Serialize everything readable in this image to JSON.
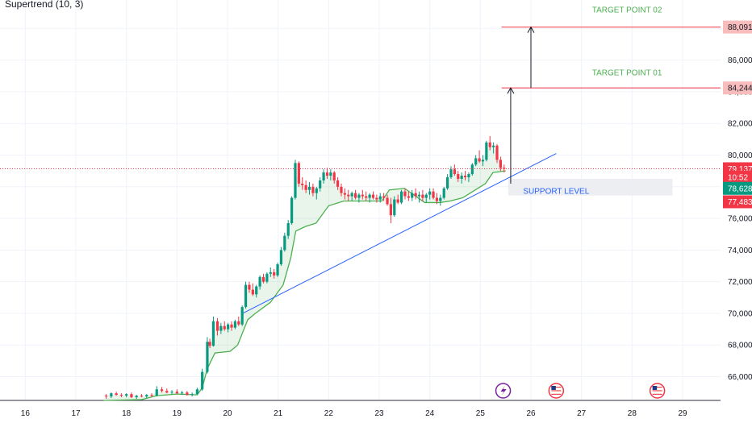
{
  "indicator": {
    "name": "Supertrend (10, 3)"
  },
  "chart_data": {
    "type": "candlestick",
    "x_axis": {
      "ticks": [
        "16",
        "17",
        "18",
        "19",
        "20",
        "21",
        "22",
        "23",
        "24",
        "25",
        "26",
        "27",
        "28",
        "29"
      ],
      "range_days": [
        15.5,
        29.75
      ]
    },
    "y_axis": {
      "ticks": [
        "66,000",
        "68,000",
        "70,000",
        "72,000",
        "74,000",
        "76,000",
        "78,000",
        "80,000",
        "82,000",
        "84,000",
        "86,000",
        "88,000"
      ],
      "range": [
        64500,
        89800
      ],
      "grid": true,
      "position": "right"
    },
    "price_tags": [
      {
        "label": "88,091",
        "value": 88091,
        "bg": "#f8bcbc",
        "fg": "#131722"
      },
      {
        "label": "84,244",
        "value": 84244,
        "bg": "#f8bcbc",
        "fg": "#131722"
      },
      {
        "label": "79,137",
        "value": 79137,
        "bg": "#f23645",
        "fg": "#ffffff"
      },
      {
        "label": "10:52",
        "value": 78600,
        "bg": "#f23645",
        "fg": "#ffffff"
      },
      {
        "label": "78,628",
        "value": 77900,
        "bg": "#089981",
        "fg": "#ffffff"
      },
      {
        "label": "77,483",
        "value": 77050,
        "bg": "#f23645",
        "fg": "#ffffff"
      }
    ],
    "current_price": 79137,
    "annotations": [
      {
        "text": "TARGET POINT 02",
        "day": 27.9,
        "value": 89000,
        "color": "#4caf50"
      },
      {
        "text": "TARGET POINT 01",
        "day": 27.9,
        "value": 85050,
        "color": "#4caf50"
      },
      {
        "text": "SUPPORT LEVEL",
        "day": 26.5,
        "value": 77550,
        "color": "#2962ff"
      }
    ],
    "target_lines": [
      {
        "value": 88091,
        "from_day": 25.42,
        "color": "#f23645"
      },
      {
        "value": 84244,
        "from_day": 25.42,
        "color": "#f23645"
      }
    ],
    "arrows": [
      {
        "day": 25.6,
        "from": 78200,
        "to": 84244
      },
      {
        "day": 26.0,
        "from": 84244,
        "to": 88091
      }
    ],
    "trendline": {
      "from": {
        "day": 20.3,
        "value": 70000
      },
      "to": {
        "day": 26.5,
        "value": 80100
      },
      "color": "#2962ff"
    },
    "support_zone": {
      "from_day": 25.55,
      "to_day": 28.8,
      "low": 77450,
      "high": 78500
    },
    "supertrend": [
      [
        17.55,
        64500
      ],
      [
        18.3,
        64550
      ],
      [
        18.6,
        64800
      ],
      [
        19.0,
        64900
      ],
      [
        19.4,
        64850
      ],
      [
        19.5,
        65300
      ],
      [
        19.6,
        66500
      ],
      [
        19.75,
        67500
      ],
      [
        20.05,
        67600
      ],
      [
        20.2,
        68000
      ],
      [
        20.4,
        69600
      ],
      [
        20.55,
        70000
      ],
      [
        20.85,
        70700
      ],
      [
        21.1,
        71800
      ],
      [
        21.25,
        73500
      ],
      [
        21.35,
        75200
      ],
      [
        21.55,
        75500
      ],
      [
        21.75,
        75700
      ],
      [
        22.0,
        76800
      ],
      [
        22.3,
        77100
      ],
      [
        22.75,
        77100
      ],
      [
        23.05,
        77100
      ],
      [
        23.2,
        77800
      ],
      [
        23.5,
        77900
      ],
      [
        23.9,
        77000
      ],
      [
        24.2,
        77000
      ],
      [
        24.4,
        77100
      ],
      [
        24.65,
        77300
      ],
      [
        24.85,
        77700
      ],
      [
        25.1,
        78200
      ],
      [
        25.25,
        78900
      ],
      [
        25.5,
        79000
      ]
    ],
    "candles": [
      [
        17.6,
        64800,
        64900,
        64600,
        64750
      ],
      [
        17.7,
        64750,
        65000,
        64650,
        64950
      ],
      [
        17.8,
        64950,
        65050,
        64800,
        64850
      ],
      [
        17.9,
        64850,
        64950,
        64700,
        64800
      ],
      [
        18.0,
        64800,
        64950,
        64700,
        64900
      ],
      [
        18.1,
        64900,
        65000,
        64650,
        64700
      ],
      [
        18.2,
        64700,
        64850,
        64600,
        64800
      ],
      [
        18.3,
        64800,
        64900,
        64700,
        64750
      ],
      [
        18.4,
        64750,
        64900,
        64650,
        64850
      ],
      [
        18.5,
        64850,
        64950,
        64700,
        64800
      ],
      [
        18.6,
        64800,
        65400,
        64750,
        65200
      ],
      [
        18.7,
        65200,
        65350,
        65000,
        65100
      ],
      [
        18.8,
        65100,
        65250,
        64950,
        65000
      ],
      [
        18.9,
        65000,
        65150,
        64900,
        65050
      ],
      [
        19.0,
        65050,
        65200,
        64900,
        64950
      ],
      [
        19.1,
        64950,
        65100,
        64850,
        65000
      ],
      [
        19.2,
        65000,
        65100,
        64800,
        64850
      ],
      [
        19.3,
        64850,
        65000,
        64750,
        64900
      ],
      [
        19.4,
        64900,
        65300,
        64850,
        65200
      ],
      [
        19.5,
        65200,
        66500,
        65100,
        66300
      ],
      [
        19.6,
        66300,
        68500,
        66200,
        68200
      ],
      [
        19.65,
        68200,
        68400,
        67800,
        67950
      ],
      [
        19.72,
        67950,
        69800,
        67900,
        69500
      ],
      [
        19.8,
        69500,
        69700,
        68600,
        68900
      ],
      [
        19.87,
        68900,
        69400,
        68700,
        69200
      ],
      [
        19.94,
        69200,
        69500,
        68900,
        69000
      ],
      [
        20.01,
        69000,
        69400,
        68800,
        69300
      ],
      [
        20.08,
        69300,
        69500,
        68900,
        69100
      ],
      [
        20.15,
        69100,
        69600,
        69000,
        69500
      ],
      [
        20.22,
        69500,
        69800,
        69200,
        69300
      ],
      [
        20.29,
        69300,
        70500,
        69200,
        70400
      ],
      [
        20.36,
        70400,
        72000,
        70300,
        71800
      ],
      [
        20.43,
        71800,
        72000,
        71300,
        71500
      ],
      [
        20.5,
        71500,
        71900,
        71100,
        71200
      ],
      [
        20.57,
        71200,
        71800,
        71000,
        71700
      ],
      [
        20.64,
        71700,
        72400,
        71500,
        72300
      ],
      [
        20.71,
        72300,
        72500,
        71900,
        72000
      ],
      [
        20.78,
        72000,
        72600,
        71900,
        72500
      ],
      [
        20.85,
        72500,
        72900,
        72300,
        72600
      ],
      [
        20.92,
        72600,
        72800,
        72200,
        72400
      ],
      [
        20.99,
        72400,
        73200,
        72300,
        73100
      ],
      [
        21.06,
        73100,
        74200,
        73000,
        74000
      ],
      [
        21.13,
        74000,
        75100,
        73900,
        74900
      ],
      [
        21.2,
        74900,
        75900,
        74700,
        75700
      ],
      [
        21.27,
        75700,
        77400,
        75600,
        77300
      ],
      [
        21.34,
        77300,
        79700,
        77200,
        79500
      ],
      [
        21.41,
        79500,
        79600,
        78000,
        78200
      ],
      [
        21.48,
        78200,
        78600,
        77800,
        78100
      ],
      [
        21.55,
        78100,
        78400,
        77600,
        77800
      ],
      [
        21.62,
        77800,
        78300,
        77500,
        78000
      ],
      [
        21.69,
        78000,
        78200,
        77400,
        77600
      ],
      [
        21.76,
        77600,
        78000,
        77200,
        77900
      ],
      [
        21.83,
        77900,
        78600,
        77700,
        78400
      ],
      [
        21.9,
        78400,
        79100,
        78200,
        78900
      ],
      [
        21.97,
        78900,
        79200,
        78500,
        78700
      ],
      [
        22.04,
        78700,
        79100,
        78400,
        78900
      ],
      [
        22.11,
        78900,
        79000,
        78200,
        78400
      ],
      [
        22.18,
        78400,
        78600,
        77800,
        78000
      ],
      [
        22.25,
        78000,
        78200,
        77400,
        77600
      ],
      [
        22.32,
        77600,
        77900,
        77200,
        77500
      ],
      [
        22.39,
        77500,
        77800,
        77100,
        77400
      ],
      [
        22.46,
        77400,
        77700,
        77100,
        77600
      ],
      [
        22.53,
        77600,
        77800,
        77200,
        77300
      ],
      [
        22.6,
        77300,
        77600,
        77000,
        77500
      ],
      [
        22.67,
        77500,
        77800,
        77200,
        77400
      ],
      [
        22.74,
        77400,
        77700,
        77100,
        77300
      ],
      [
        22.81,
        77300,
        77600,
        77000,
        77500
      ],
      [
        22.88,
        77500,
        77700,
        77200,
        77300
      ],
      [
        22.95,
        77300,
        77500,
        77000,
        77200
      ],
      [
        23.02,
        77200,
        77600,
        77000,
        77400
      ],
      [
        23.09,
        77400,
        77600,
        77100,
        77300
      ],
      [
        23.16,
        77300,
        77500,
        76800,
        76900
      ],
      [
        23.23,
        76900,
        77300,
        75700,
        76200
      ],
      [
        23.3,
        76200,
        77400,
        76100,
        77200
      ],
      [
        23.37,
        77200,
        77500,
        76900,
        77000
      ],
      [
        23.44,
        77000,
        77800,
        76900,
        77700
      ],
      [
        23.51,
        77700,
        77900,
        77200,
        77400
      ],
      [
        23.58,
        77400,
        77700,
        77100,
        77300
      ],
      [
        23.65,
        77300,
        77800,
        77100,
        77600
      ],
      [
        23.72,
        77600,
        77900,
        77200,
        77400
      ],
      [
        23.79,
        77400,
        77700,
        77000,
        77500
      ],
      [
        23.86,
        77500,
        77800,
        77100,
        77300
      ],
      [
        23.93,
        77300,
        77600,
        77000,
        77500
      ],
      [
        24.0,
        77500,
        77900,
        77200,
        77700
      ],
      [
        24.07,
        77700,
        77900,
        77200,
        77300
      ],
      [
        24.14,
        77300,
        77600,
        76900,
        77100
      ],
      [
        24.21,
        77100,
        77500,
        76800,
        77300
      ],
      [
        24.28,
        77300,
        78000,
        77200,
        77900
      ],
      [
        24.35,
        77900,
        78800,
        77800,
        78600
      ],
      [
        24.42,
        78600,
        79300,
        78500,
        79100
      ],
      [
        24.49,
        79100,
        79400,
        78700,
        78800
      ],
      [
        24.56,
        78800,
        79000,
        78300,
        78500
      ],
      [
        24.63,
        78500,
        78900,
        78200,
        78700
      ],
      [
        24.7,
        78700,
        79000,
        78400,
        78600
      ],
      [
        24.77,
        78600,
        78900,
        78300,
        78800
      ],
      [
        24.84,
        78800,
        79500,
        78700,
        79400
      ],
      [
        24.91,
        79400,
        80000,
        79300,
        79800
      ],
      [
        24.98,
        79800,
        80300,
        79500,
        79600
      ],
      [
        25.05,
        79600,
        80000,
        79300,
        79700
      ],
      [
        25.12,
        79700,
        80900,
        79600,
        80800
      ],
      [
        25.19,
        80800,
        81200,
        80300,
        80500
      ],
      [
        25.26,
        80500,
        80800,
        80100,
        80600
      ],
      [
        25.33,
        80600,
        80700,
        79500,
        79700
      ],
      [
        25.4,
        79700,
        79900,
        79000,
        79200
      ],
      [
        25.47,
        79200,
        79400,
        78900,
        79137
      ]
    ],
    "event_icons": [
      {
        "day": 25.45,
        "kind": "crypto-event-icon"
      },
      {
        "day": 26.5,
        "kind": "us-flag-icon"
      },
      {
        "day": 28.5,
        "kind": "us-flag-icon"
      }
    ]
  }
}
